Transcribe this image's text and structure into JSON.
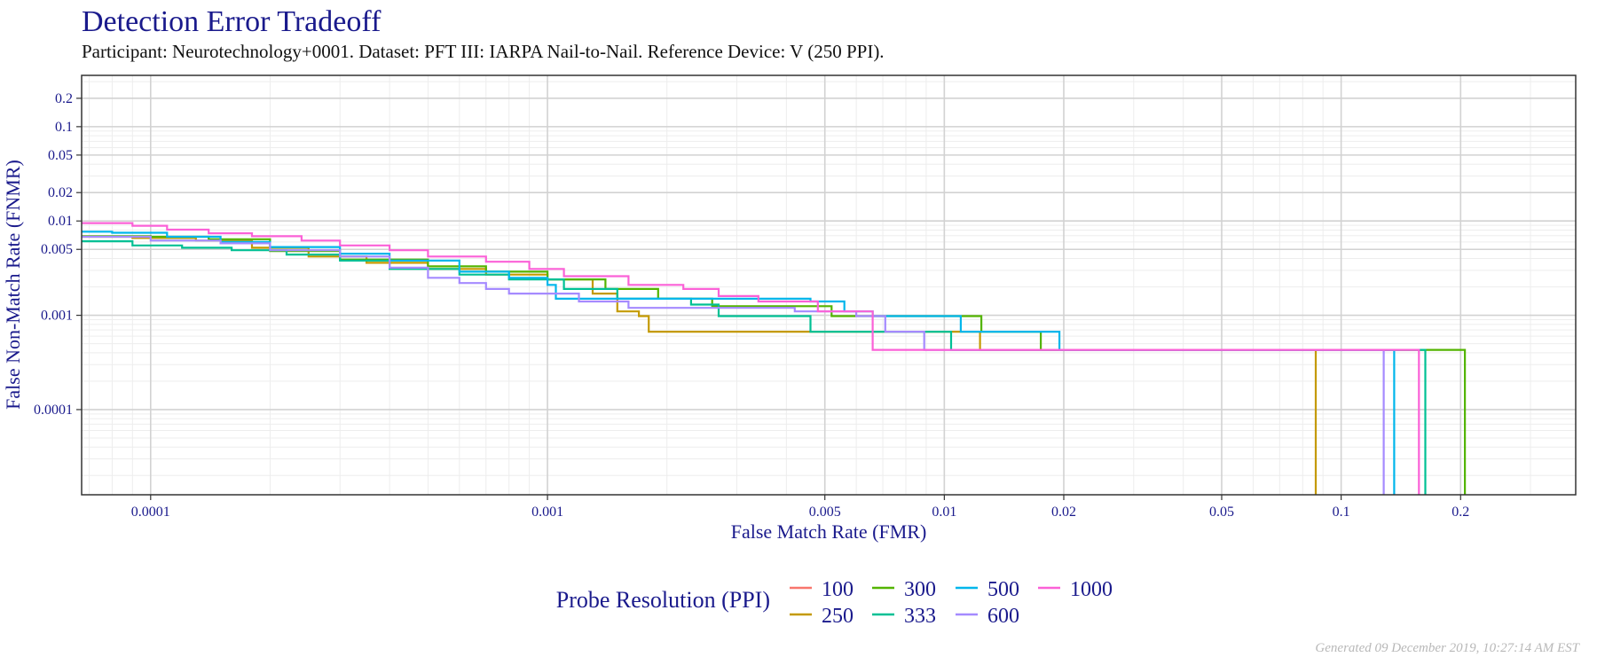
{
  "chart_title": "Detection Error Tradeoff",
  "chart_subtitle": "Participant: Neurotechnology+0001. Dataset: PFT III: IARPA Nail-to-Nail. Reference Device: V (250 PPI).",
  "footer": "Generated 09 December 2019, 10:27:14 AM EST",
  "chart_data": {
    "type": "line",
    "title": "Detection Error Tradeoff",
    "subtitle": "Participant: Neurotechnology+0001. Dataset: PFT III: IARPA Nail-to-Nail. Reference Device: V (250 PPI).",
    "xlabel": "False Match Rate (FMR)",
    "ylabel": "False Non-Match Rate (FNMR)",
    "x_scale": "log",
    "y_scale": "log",
    "xlim": [
      6.7e-05,
      0.39
    ],
    "ylim": [
      1.25e-05,
      0.35
    ],
    "x_ticks": [
      {
        "v": 0.0001,
        "label": "0.0001"
      },
      {
        "v": 0.001,
        "label": "0.001"
      },
      {
        "v": 0.005,
        "label": "0.005"
      },
      {
        "v": 0.01,
        "label": "0.01"
      },
      {
        "v": 0.02,
        "label": "0.02"
      },
      {
        "v": 0.05,
        "label": "0.05"
      },
      {
        "v": 0.1,
        "label": "0.1"
      },
      {
        "v": 0.2,
        "label": "0.2"
      }
    ],
    "y_ticks": [
      {
        "v": 0.0001,
        "label": "0.0001"
      },
      {
        "v": 0.001,
        "label": "0.001"
      },
      {
        "v": 0.005,
        "label": "0.005"
      },
      {
        "v": 0.01,
        "label": "0.01"
      },
      {
        "v": 0.02,
        "label": "0.02"
      },
      {
        "v": 0.05,
        "label": "0.05"
      },
      {
        "v": 0.1,
        "label": "0.1"
      },
      {
        "v": 0.2,
        "label": "0.2"
      }
    ],
    "grid": true,
    "legend": {
      "title": "Probe Resolution (PPI)",
      "position": "bottom"
    },
    "series": [
      {
        "name": "100",
        "color": "#F8766D",
        "points": []
      },
      {
        "name": "250",
        "color": "#C49A00",
        "points": [
          [
            6.7e-05,
            0.0068
          ],
          [
            9e-05,
            0.0066
          ],
          [
            0.00013,
            0.0062
          ],
          [
            0.00018,
            0.0052
          ],
          [
            0.00025,
            0.0042
          ],
          [
            0.00035,
            0.0036
          ],
          [
            0.0005,
            0.0031
          ],
          [
            0.0007,
            0.0027
          ],
          [
            0.001,
            0.0024
          ],
          [
            0.0013,
            0.0017
          ],
          [
            0.0015,
            0.0011
          ],
          [
            0.0017,
            0.00098
          ],
          [
            0.0018,
            0.00067
          ],
          [
            0.005,
            0.00067
          ],
          [
            0.0052,
            0.00067
          ],
          [
            0.0105,
            0.00067
          ],
          [
            0.0123,
            0.00043
          ],
          [
            0.0863,
            0.00043
          ],
          [
            0.0863,
            1.25e-05
          ]
        ]
      },
      {
        "name": "300",
        "color": "#53B400",
        "points": [
          [
            6.7e-05,
            0.0069
          ],
          [
            0.0001,
            0.0068
          ],
          [
            0.00014,
            0.0064
          ],
          [
            0.0002,
            0.0048
          ],
          [
            0.0003,
            0.0039
          ],
          [
            0.0005,
            0.0033
          ],
          [
            0.0007,
            0.0029
          ],
          [
            0.001,
            0.0024
          ],
          [
            0.0014,
            0.0019
          ],
          [
            0.0019,
            0.0015
          ],
          [
            0.0026,
            0.00125
          ],
          [
            0.0052,
            0.00098
          ],
          [
            0.0052,
            0.00098
          ],
          [
            0.0124,
            0.00098
          ],
          [
            0.0124,
            0.00067
          ],
          [
            0.0175,
            0.00067
          ],
          [
            0.0175,
            0.00043
          ],
          [
            0.205,
            0.00043
          ],
          [
            0.205,
            1.25e-05
          ]
        ]
      },
      {
        "name": "333",
        "color": "#00C094",
        "points": [
          [
            6.7e-05,
            0.0061
          ],
          [
            9e-05,
            0.0055
          ],
          [
            0.00012,
            0.0052
          ],
          [
            0.00016,
            0.0049
          ],
          [
            0.00022,
            0.0044
          ],
          [
            0.0003,
            0.0038
          ],
          [
            0.0004,
            0.0031
          ],
          [
            0.0006,
            0.0027
          ],
          [
            0.0008,
            0.0024
          ],
          [
            0.0011,
            0.0019
          ],
          [
            0.0015,
            0.0015
          ],
          [
            0.0023,
            0.0013
          ],
          [
            0.0027,
            0.00098
          ],
          [
            0.0046,
            0.00098
          ],
          [
            0.0046,
            0.00067
          ],
          [
            0.0104,
            0.00067
          ],
          [
            0.0104,
            0.00043
          ],
          [
            0.163,
            0.00043
          ],
          [
            0.163,
            1.25e-05
          ]
        ]
      },
      {
        "name": "500",
        "color": "#00B6EB",
        "points": [
          [
            6.7e-05,
            0.0077
          ],
          [
            8e-05,
            0.0075
          ],
          [
            0.00011,
            0.0068
          ],
          [
            0.00015,
            0.006
          ],
          [
            0.0002,
            0.0053
          ],
          [
            0.0003,
            0.0045
          ],
          [
            0.0004,
            0.0038
          ],
          [
            0.0006,
            0.0029
          ],
          [
            0.0008,
            0.0025
          ],
          [
            0.001,
            0.0021
          ],
          [
            0.00105,
            0.0015
          ],
          [
            0.0015,
            0.0015
          ],
          [
            0.0025,
            0.0015
          ],
          [
            0.0032,
            0.0015
          ],
          [
            0.0046,
            0.0014
          ],
          [
            0.0056,
            0.0011
          ],
          [
            0.0066,
            0.0011
          ],
          [
            0.0066,
            0.00098
          ],
          [
            0.011,
            0.00098
          ],
          [
            0.011,
            0.00067
          ],
          [
            0.0195,
            0.00067
          ],
          [
            0.0195,
            0.00043
          ],
          [
            0.136,
            0.00043
          ],
          [
            0.136,
            1.25e-05
          ]
        ]
      },
      {
        "name": "600",
        "color": "#A58AFF",
        "points": [
          [
            6.7e-05,
            0.0068
          ],
          [
            0.0001,
            0.0062
          ],
          [
            0.00015,
            0.0058
          ],
          [
            0.0002,
            0.0049
          ],
          [
            0.0003,
            0.0042
          ],
          [
            0.0004,
            0.0032
          ],
          [
            0.0005,
            0.0025
          ],
          [
            0.0006,
            0.0022
          ],
          [
            0.0007,
            0.0019
          ],
          [
            0.0008,
            0.0017
          ],
          [
            0.001,
            0.0017
          ],
          [
            0.0012,
            0.0014
          ],
          [
            0.0016,
            0.0012
          ],
          [
            0.0025,
            0.0012
          ],
          [
            0.0042,
            0.0011
          ],
          [
            0.005,
            0.0011
          ],
          [
            0.006,
            0.00098
          ],
          [
            0.0071,
            0.00098
          ],
          [
            0.0071,
            0.00067
          ],
          [
            0.0089,
            0.00067
          ],
          [
            0.0089,
            0.00043
          ],
          [
            0.128,
            0.00043
          ],
          [
            0.128,
            1.25e-05
          ]
        ]
      },
      {
        "name": "1000",
        "color": "#FB61D7",
        "points": [
          [
            6.7e-05,
            0.0095
          ],
          [
            9e-05,
            0.0089
          ],
          [
            0.00011,
            0.0081
          ],
          [
            0.00014,
            0.0074
          ],
          [
            0.00018,
            0.0069
          ],
          [
            0.00024,
            0.0062
          ],
          [
            0.0003,
            0.0055
          ],
          [
            0.0004,
            0.0049
          ],
          [
            0.0005,
            0.0042
          ],
          [
            0.0007,
            0.0037
          ],
          [
            0.0009,
            0.0031
          ],
          [
            0.0011,
            0.0026
          ],
          [
            0.0016,
            0.0021
          ],
          [
            0.0022,
            0.0019
          ],
          [
            0.0027,
            0.0016
          ],
          [
            0.0034,
            0.0014
          ],
          [
            0.0046,
            0.0014
          ],
          [
            0.0048,
            0.0011
          ],
          [
            0.0063,
            0.0011
          ],
          [
            0.0066,
            0.00067
          ],
          [
            0.0066,
            0.00043
          ],
          [
            0.157,
            0.00043
          ],
          [
            0.157,
            1.25e-05
          ]
        ]
      }
    ]
  }
}
